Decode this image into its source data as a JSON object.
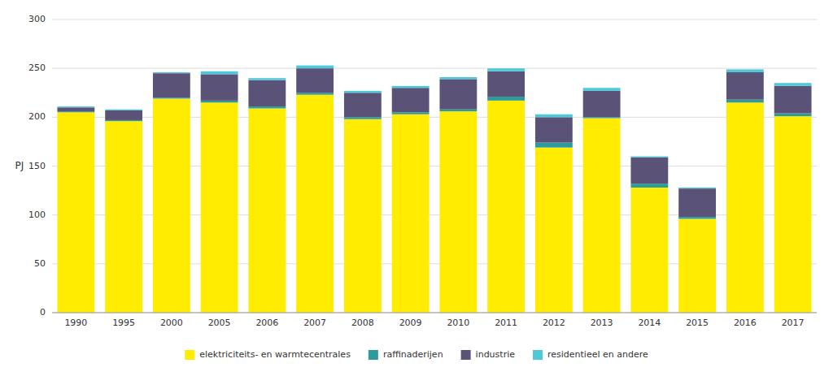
{
  "chart_data": {
    "type": "bar",
    "stacked": true,
    "grid": true,
    "legend": "bottom",
    "ylabel": "PJ",
    "categories": [
      "1990",
      "1995",
      "2000",
      "2005",
      "2006",
      "2007",
      "2008",
      "2009",
      "2010",
      "2011",
      "2012",
      "2013",
      "2014",
      "2015",
      "2016",
      "2017"
    ],
    "series": [
      {
        "name": "elektriciteits- en warmtecentrales",
        "color": "#FFEC00",
        "values": [
          205,
          196,
          219,
          215,
          209,
          223,
          198,
          203,
          206,
          217,
          169,
          199,
          128,
          96,
          215,
          201
        ]
      },
      {
        "name": "raffinaderijen",
        "color": "#2E9B9B",
        "values": [
          1,
          1,
          1,
          2,
          2,
          2,
          2,
          2,
          2,
          4,
          5,
          1,
          4,
          2,
          3,
          3
        ]
      },
      {
        "name": "industrie",
        "color": "#5B5278",
        "values": [
          4,
          10,
          25,
          27,
          27,
          25,
          25,
          25,
          31,
          26,
          26,
          27,
          27,
          29,
          28,
          28
        ]
      },
      {
        "name": "residentieel en andere",
        "color": "#4FC8D8",
        "values": [
          1,
          1,
          1,
          3,
          2,
          3,
          2,
          2,
          2,
          3,
          3,
          3,
          1,
          1,
          3,
          3
        ]
      }
    ],
    "ylim": [
      0,
      300
    ],
    "yticks": [
      0,
      50,
      100,
      150,
      200,
      250,
      300
    ]
  }
}
